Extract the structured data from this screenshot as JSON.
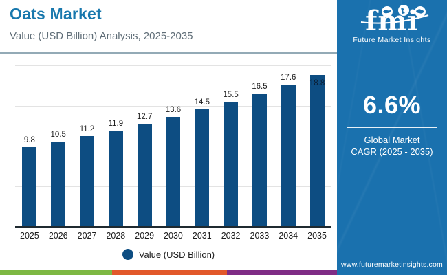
{
  "header": {
    "title": "Oats Market",
    "subtitle": "Value (USD Billion) Analysis, 2025-2035"
  },
  "chart_data": {
    "type": "bar",
    "categories": [
      "2025",
      "2026",
      "2027",
      "2028",
      "2029",
      "2030",
      "2031",
      "2032",
      "2033",
      "2034",
      "2035"
    ],
    "values": [
      9.8,
      10.5,
      11.2,
      11.9,
      12.7,
      13.6,
      14.5,
      15.5,
      16.5,
      17.6,
      18.8
    ],
    "title": "Oats Market",
    "xlabel": "",
    "ylabel": "",
    "ylim": [
      0,
      20
    ],
    "grid": true,
    "gridline_values": [
      5,
      10,
      15,
      20
    ],
    "legend_position": "bottom",
    "legend_label": "Value (USD Billion)",
    "bar_color": "#0d4d82",
    "inside_label_index": 10
  },
  "sidebar": {
    "logo": {
      "text": "fmi",
      "tagline": "Future Market Insights"
    },
    "cagr": {
      "value": "6.6%",
      "line1": "Global Market",
      "line2": "CAGR (2025 - 2035)"
    },
    "website": "www.futuremarketinsights.com",
    "bg_color": "#1a71ae"
  },
  "footer_strip": {
    "green": "#7db843",
    "orange": "#e2582a",
    "purple": "#7f2c85"
  }
}
